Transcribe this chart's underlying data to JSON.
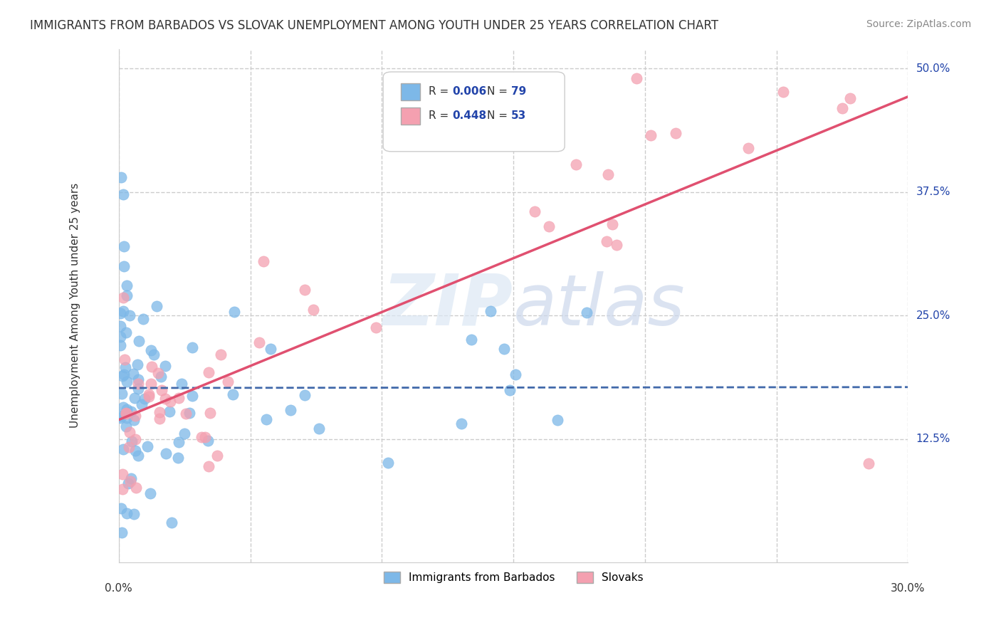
{
  "title": "IMMIGRANTS FROM BARBADOS VS SLOVAK UNEMPLOYMENT AMONG YOUTH UNDER 25 YEARS CORRELATION CHART",
  "source": "Source: ZipAtlas.com",
  "ylabel": "Unemployment Among Youth under 25 years",
  "xlim": [
    0.0,
    0.3
  ],
  "ylim": [
    0.0,
    0.52
  ],
  "ytick_positions": [
    0.125,
    0.25,
    0.375,
    0.5
  ],
  "ytick_labels": [
    "12.5%",
    "25.0%",
    "37.5%",
    "50.0%"
  ],
  "blue_color": "#7db8e8",
  "pink_color": "#f4a0b0",
  "blue_line_color": "#4169aa",
  "pink_line_color": "#e05070",
  "accent_color": "#2244aa",
  "legend_r_blue": "0.006",
  "legend_n_blue": "79",
  "legend_r_pink": "0.448",
  "legend_n_pink": "53"
}
